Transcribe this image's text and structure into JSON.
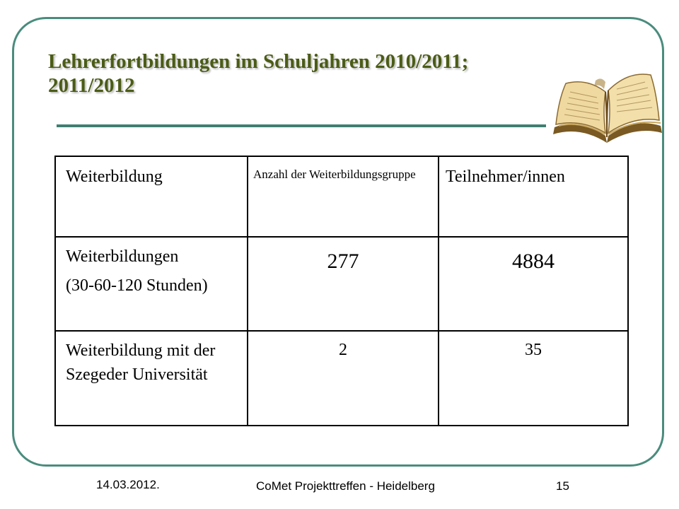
{
  "slide": {
    "title_line1": "Lehrerfortbildungen im Schuljahren 2010/2011;",
    "title_line2": "2011/2012"
  },
  "table": {
    "headers": [
      "Weiterbildung",
      "Anzahl der Weiterbildungsgruppe",
      "Teilnehmer/innen"
    ],
    "rows": [
      {
        "label_lines": [
          "Weiterbildungen",
          "(30-60-120 Stunden)"
        ],
        "groups": "277",
        "participants": "4884"
      },
      {
        "label_lines": [
          "Weiterbildung mit der Szegeder Universität"
        ],
        "groups": "2",
        "participants": "35"
      }
    ]
  },
  "footer": {
    "date": "14.03.2012.",
    "event": "CoMet Projekttreffen - Heidelberg",
    "page": "15"
  },
  "icons": {
    "decoration": "open-book-icon"
  },
  "colors": {
    "frame": "#4a8c7d",
    "title": "#4b5c16",
    "rule": "#3f7f72"
  }
}
